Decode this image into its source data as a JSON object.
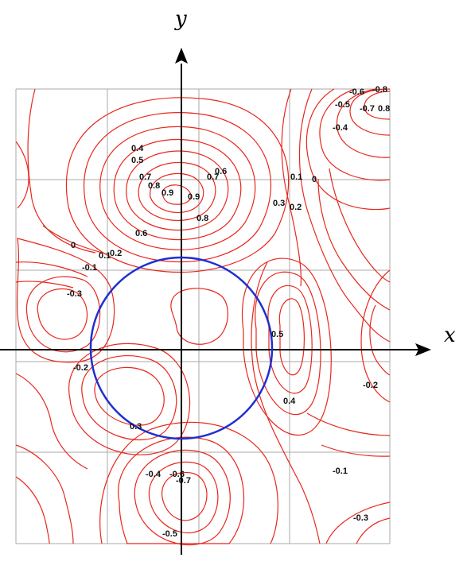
{
  "diagram": {
    "axes": {
      "x_label": "x",
      "y_label": "y"
    },
    "colors": {
      "contour": "#e8271d",
      "circle": "#1f2fd0",
      "grid": "#a9a9a9",
      "axis": "#000000"
    },
    "contour_levels": [
      "-0.6",
      "-0.8",
      "-0.5",
      "-0.7",
      "0.8",
      "-0.4",
      "0.4",
      "0.5",
      "0.6",
      "0.7",
      "0.7",
      "0.8",
      "0.9",
      "0.9",
      "0.8",
      "0.1",
      "0",
      "0.3",
      "0.2",
      "0.6",
      "0",
      "0.1",
      "0.2",
      "-0.1",
      "-0.3",
      "0.5",
      "-0.2",
      "-0.2",
      "0.4",
      "0.3",
      "-0.4",
      "-0.6",
      "-0.7",
      "-0.1",
      "-0.5",
      "-0.3"
    ]
  }
}
